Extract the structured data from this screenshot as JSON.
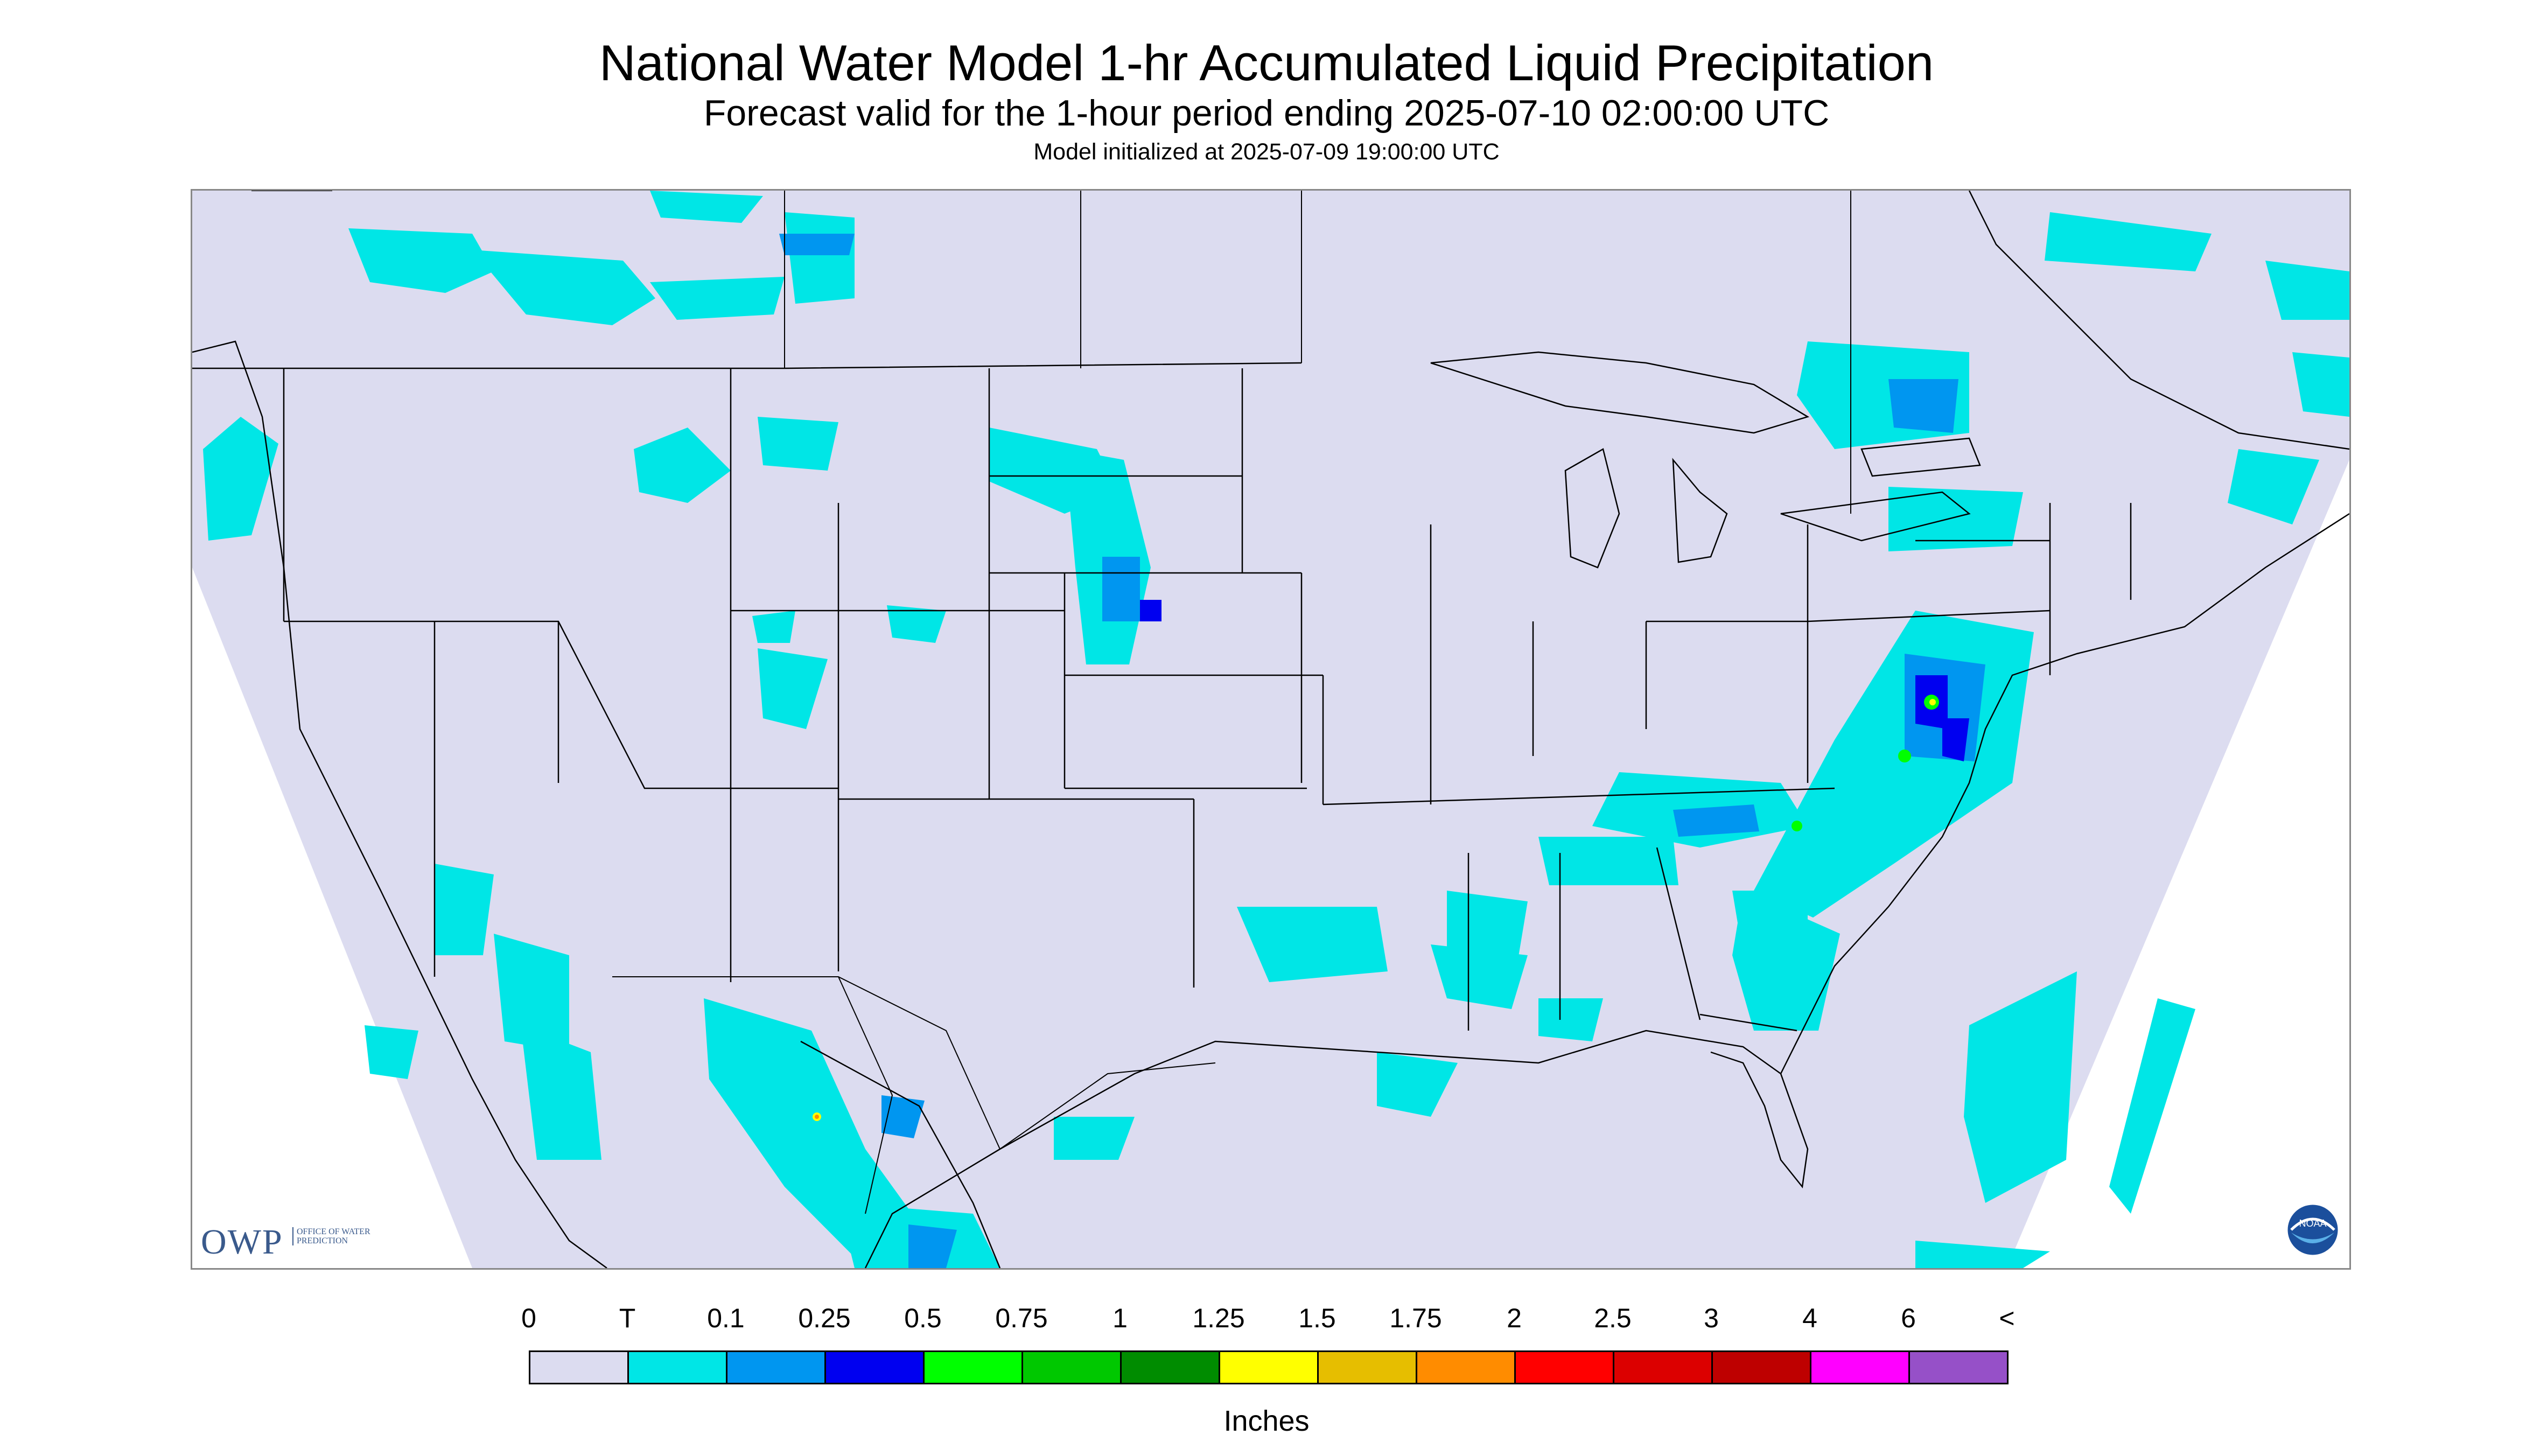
{
  "header": {
    "title": "National Water Model 1-hr Accumulated Liquid Precipitation",
    "subtitle": "Forecast valid for the 1-hour period ending 2025-07-10 02:00:00 UTC",
    "init": "Model initialized at 2025-07-09 19:00:00 UTC"
  },
  "logos": {
    "owp_letters": "OWP",
    "owp_text": "OFFICE OF WATER PREDICTION",
    "noaa_text": "NOAA"
  },
  "legend": {
    "labels": [
      "0",
      "T",
      "0.1",
      "0.25",
      "0.5",
      "0.75",
      "1",
      "1.25",
      "1.5",
      "1.75",
      "2",
      "2.5",
      "3",
      "4",
      "6",
      "<"
    ],
    "colors": [
      "#dcdcf0",
      "#00e6e6",
      "#0096f0",
      "#0000f0",
      "#00ff00",
      "#00c800",
      "#008c00",
      "#ffff00",
      "#e6be00",
      "#ff8c00",
      "#ff0000",
      "#dc0000",
      "#be0000",
      "#ff00ff",
      "#9650c8"
    ],
    "units": "Inches"
  },
  "map_colors": {
    "background": "#dcdcf0",
    "trace": "#00e6e6",
    "light": "#0096f0",
    "moderate": "#0000f0",
    "heavy": "#00ff00",
    "yellow": "#ffff00",
    "orange": "#ff8c00",
    "boundary": "#000000"
  }
}
